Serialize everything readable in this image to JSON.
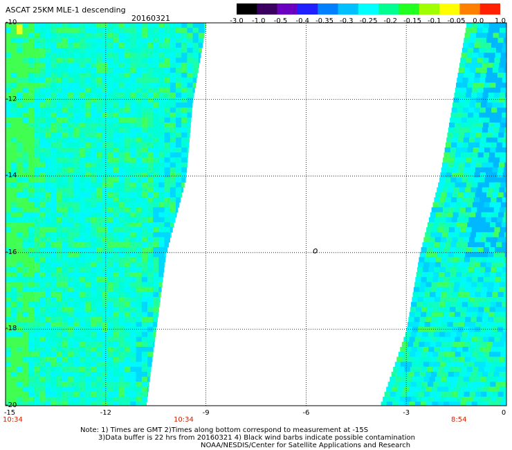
{
  "header": {
    "title": "ASCAT 25KM MLE-1 descending",
    "date": "20160321"
  },
  "colorbar": {
    "labels": [
      "-3.0",
      "-1.0",
      "-0.5",
      "-0.4",
      "-0.35",
      "-0.3",
      "-0.25",
      "-0.2",
      "-0.15",
      "-0.1",
      "-0.05",
      "0.0",
      "1.0"
    ],
    "colors": [
      "#000000",
      "#3a0060",
      "#6a00c0",
      "#2020ff",
      "#0080ff",
      "#00c0ff",
      "#00ffff",
      "#00ff90",
      "#20ff20",
      "#a0ff00",
      "#ffff00",
      "#ff8000",
      "#ff2000"
    ]
  },
  "map": {
    "lon_range": [
      -15,
      0
    ],
    "lat_range": [
      -20,
      -10
    ],
    "lon_ticks": [
      "-15",
      "-12",
      "-9",
      "-6",
      "-3",
      "0"
    ],
    "lat_ticks": [
      "-10",
      "-12",
      "-14",
      "-16",
      "-18",
      "-20"
    ],
    "marker": "o",
    "swaths": {
      "left": {
        "east_edge": [
          [
            -10,
            -9.0
          ],
          [
            -12,
            -9.4
          ],
          [
            -14,
            -9.6
          ],
          [
            -16,
            -10.2
          ],
          [
            -18,
            -10.5
          ],
          [
            -20,
            -10.8
          ]
        ]
      },
      "right": {
        "west_edge": [
          [
            -10,
            -1.2
          ],
          [
            -12,
            -1.6
          ],
          [
            -14,
            -2.0
          ],
          [
            -16,
            -2.6
          ],
          [
            -18,
            -3.0
          ],
          [
            -20,
            -3.8
          ]
        ]
      }
    }
  },
  "times": [
    "10:34",
    "10:34",
    "8:54"
  ],
  "notes": [
    "Note: 1) Times are GMT 2)Times along bottom correspond to measurement at -15S",
    "3)Data buffer is 22 hrs from 20160321 4) Black wind barbs indicate possible contamination",
    "NOAA/NESDIS/Center for Satellite Applications and Research"
  ]
}
